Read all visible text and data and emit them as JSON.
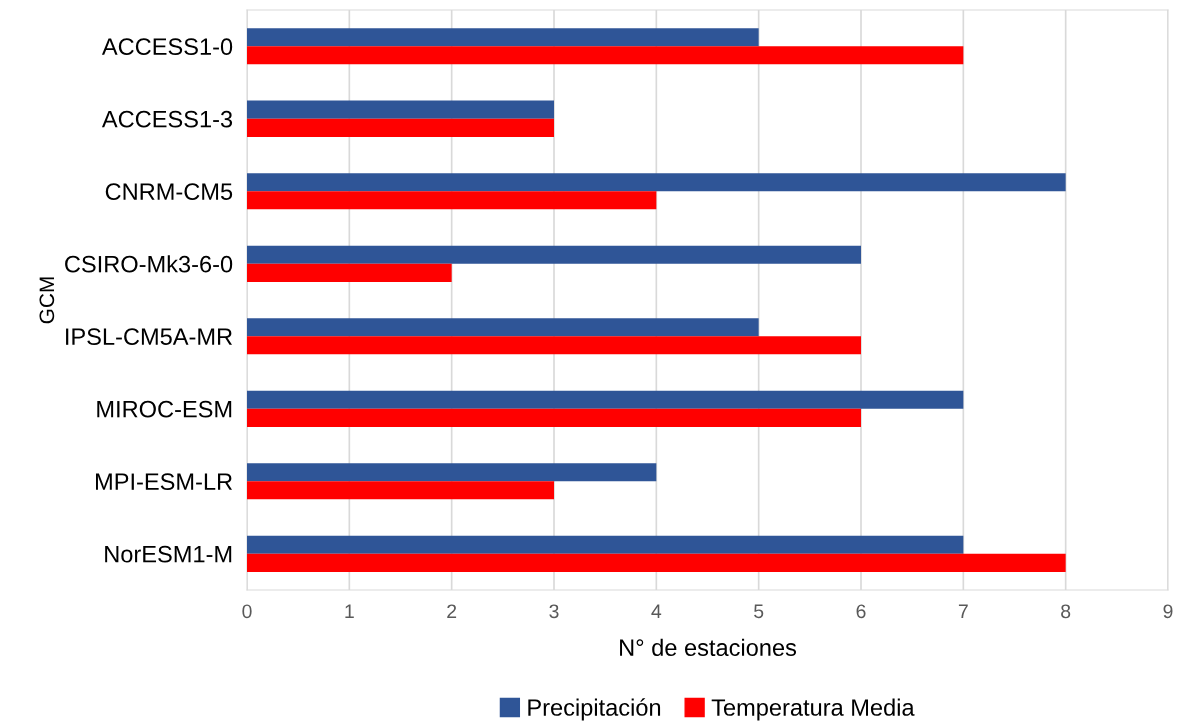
{
  "chart_data": {
    "type": "bar",
    "orientation": "horizontal",
    "xlabel": "N° de estaciones",
    "ylabel": "GCM",
    "categories": [
      "ACCESS1-0",
      "ACCESS1-3",
      "CNRM-CM5",
      "CSIRO-Mk3-6-0",
      "IPSL-CM5A-MR",
      "MIROC-ESM",
      "MPI-ESM-LR",
      "NorESM1-M"
    ],
    "series": [
      {
        "name": "Precipitación",
        "color": "#2f5597",
        "values": [
          5,
          3,
          8,
          6,
          5,
          7,
          4,
          7
        ]
      },
      {
        "name": "Temperatura Media",
        "color": "#ff0000",
        "values": [
          7,
          3,
          4,
          2,
          6,
          6,
          3,
          8
        ]
      }
    ],
    "xlim": [
      0,
      9
    ],
    "xticks": [
      0,
      1,
      2,
      3,
      4,
      5,
      6,
      7,
      8,
      9
    ],
    "grid": "x",
    "legend": "bottom"
  }
}
